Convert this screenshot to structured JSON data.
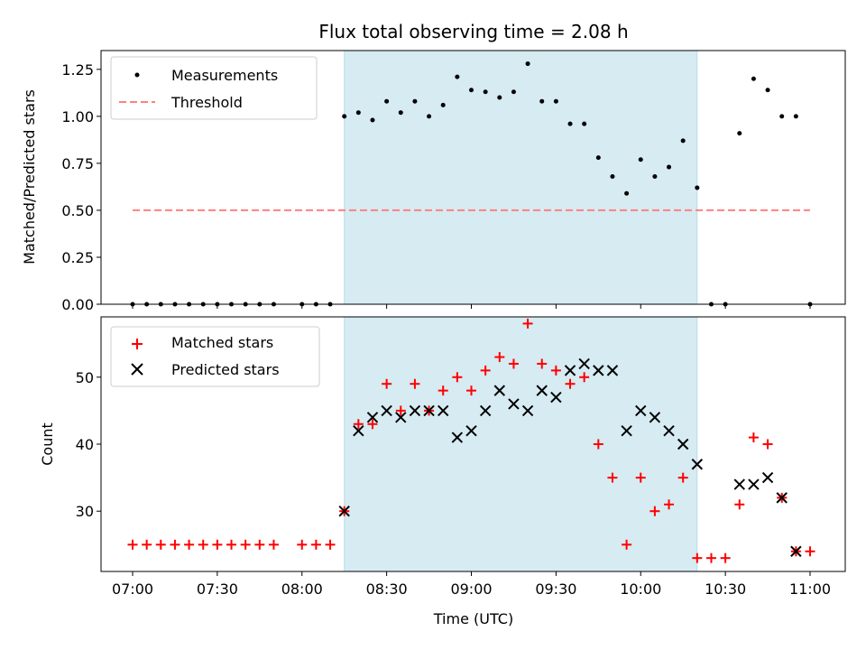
{
  "chart_data": [
    {
      "type": "scatter",
      "title": "Flux total observing time = 2.08 h",
      "xlabel": "",
      "ylabel": "Matched/Predicted stars",
      "ylim": [
        0,
        1.35
      ],
      "yticks": [
        "0.00",
        "0.25",
        "0.50",
        "0.75",
        "1.00",
        "1.25"
      ],
      "shaded_span_minutes": [
        75,
        200
      ],
      "legend": {
        "position": "top-left",
        "entries": [
          "Measurements",
          "Threshold"
        ]
      },
      "series": [
        {
          "name": "Measurements",
          "marker": "dot",
          "color": "#000000",
          "x": [
            0,
            5,
            10,
            15,
            20,
            25,
            30,
            35,
            40,
            45,
            50,
            55,
            60,
            65,
            70,
            75,
            80,
            85,
            90,
            95,
            100,
            105,
            110,
            115,
            120,
            125,
            130,
            135,
            140,
            145,
            150,
            155,
            160,
            165,
            170,
            175,
            180,
            185,
            190,
            195,
            200,
            205,
            210,
            215,
            220,
            225,
            230,
            235,
            240
          ],
          "y": [
            0,
            0,
            0,
            0,
            0,
            0,
            0,
            0,
            0,
            0,
            0,
            null,
            0,
            0,
            0,
            1.0,
            1.02,
            0.98,
            1.08,
            1.02,
            1.08,
            1.0,
            1.06,
            1.21,
            1.14,
            1.13,
            1.1,
            1.13,
            1.28,
            1.08,
            1.08,
            0.96,
            0.96,
            0.78,
            0.68,
            0.59,
            0.77,
            0.68,
            0.73,
            0.87,
            0.62,
            0,
            0,
            0.91,
            1.2,
            1.14,
            1.0,
            1.0,
            0
          ]
        },
        {
          "name": "Threshold",
          "marker": "dashed-line",
          "color": "#ff8080",
          "x": [
            0,
            240
          ],
          "y": [
            0.5,
            0.5
          ]
        }
      ]
    },
    {
      "type": "scatter",
      "title": "",
      "xlabel": "Time (UTC)",
      "ylabel": "Count",
      "ylim": [
        21,
        59
      ],
      "yticks": [
        "30",
        "40",
        "50"
      ],
      "xticks": [
        "07:00",
        "07:30",
        "08:00",
        "08:30",
        "09:00",
        "09:30",
        "10:00",
        "10:30",
        "11:00"
      ],
      "shaded_span_minutes": [
        75,
        200
      ],
      "legend": {
        "position": "top-left",
        "entries": [
          "Matched stars",
          "Predicted stars"
        ]
      },
      "series": [
        {
          "name": "Matched stars",
          "marker": "plus",
          "color": "#ff0000",
          "x": [
            0,
            5,
            10,
            15,
            20,
            25,
            30,
            35,
            40,
            45,
            50,
            55,
            60,
            65,
            70,
            75,
            80,
            85,
            90,
            95,
            100,
            105,
            110,
            115,
            120,
            125,
            130,
            135,
            140,
            145,
            150,
            155,
            160,
            165,
            170,
            175,
            180,
            185,
            190,
            195,
            200,
            205,
            210,
            215,
            220,
            225,
            230,
            235,
            240
          ],
          "y": [
            25,
            25,
            25,
            25,
            25,
            25,
            25,
            25,
            25,
            25,
            25,
            null,
            25,
            25,
            25,
            30,
            43,
            43,
            49,
            45,
            49,
            45,
            48,
            50,
            48,
            51,
            53,
            52,
            58,
            52,
            51,
            49,
            50,
            40,
            35,
            25,
            35,
            30,
            31,
            35,
            23,
            23,
            23,
            31,
            41,
            40,
            32,
            24,
            24
          ]
        },
        {
          "name": "Predicted stars",
          "marker": "x",
          "color": "#000000",
          "x": [
            75,
            80,
            85,
            90,
            95,
            100,
            105,
            110,
            115,
            120,
            125,
            130,
            135,
            140,
            145,
            150,
            155,
            160,
            165,
            170,
            175,
            180,
            185,
            190,
            195,
            200,
            215,
            220,
            225,
            230,
            235
          ],
          "y": [
            30,
            42,
            44,
            45,
            44,
            45,
            45,
            45,
            41,
            42,
            45,
            48,
            46,
            45,
            48,
            47,
            51,
            52,
            51,
            51,
            42,
            45,
            44,
            42,
            40,
            37,
            34,
            34,
            35,
            32,
            24
          ]
        }
      ]
    }
  ]
}
